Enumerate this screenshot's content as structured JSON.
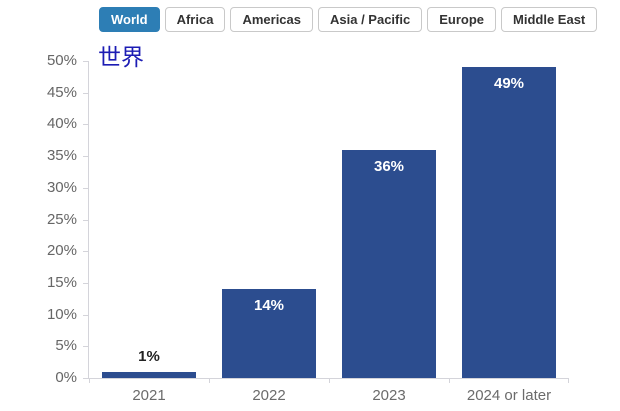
{
  "tabs": {
    "items": [
      {
        "label": "World",
        "active": true
      },
      {
        "label": "Africa",
        "active": false
      },
      {
        "label": "Americas",
        "active": false
      },
      {
        "label": "Asia / Pacific",
        "active": false
      },
      {
        "label": "Europe",
        "active": false
      },
      {
        "label": "Middle East",
        "active": false
      }
    ]
  },
  "region_title": "世界",
  "colors": {
    "bar": "#2c4d8f",
    "tab_active_bg": "#2d7eb5",
    "title_blue": "#1c1cb4",
    "axis_line": "#d4d4da",
    "axis_label": "#666666"
  },
  "chart_data": {
    "type": "bar",
    "categories": [
      "2021",
      "2022",
      "2023",
      "2024 or later"
    ],
    "values": [
      1,
      14,
      36,
      49
    ],
    "data_labels": [
      "1%",
      "14%",
      "36%",
      "49%"
    ],
    "title": "世界",
    "xlabel": "",
    "ylabel": "",
    "ylim": [
      0,
      50
    ],
    "ytick_step": 5,
    "ytick_suffix": "%",
    "grid": false,
    "legend": "none",
    "bar_color": "#2c4d8f"
  }
}
